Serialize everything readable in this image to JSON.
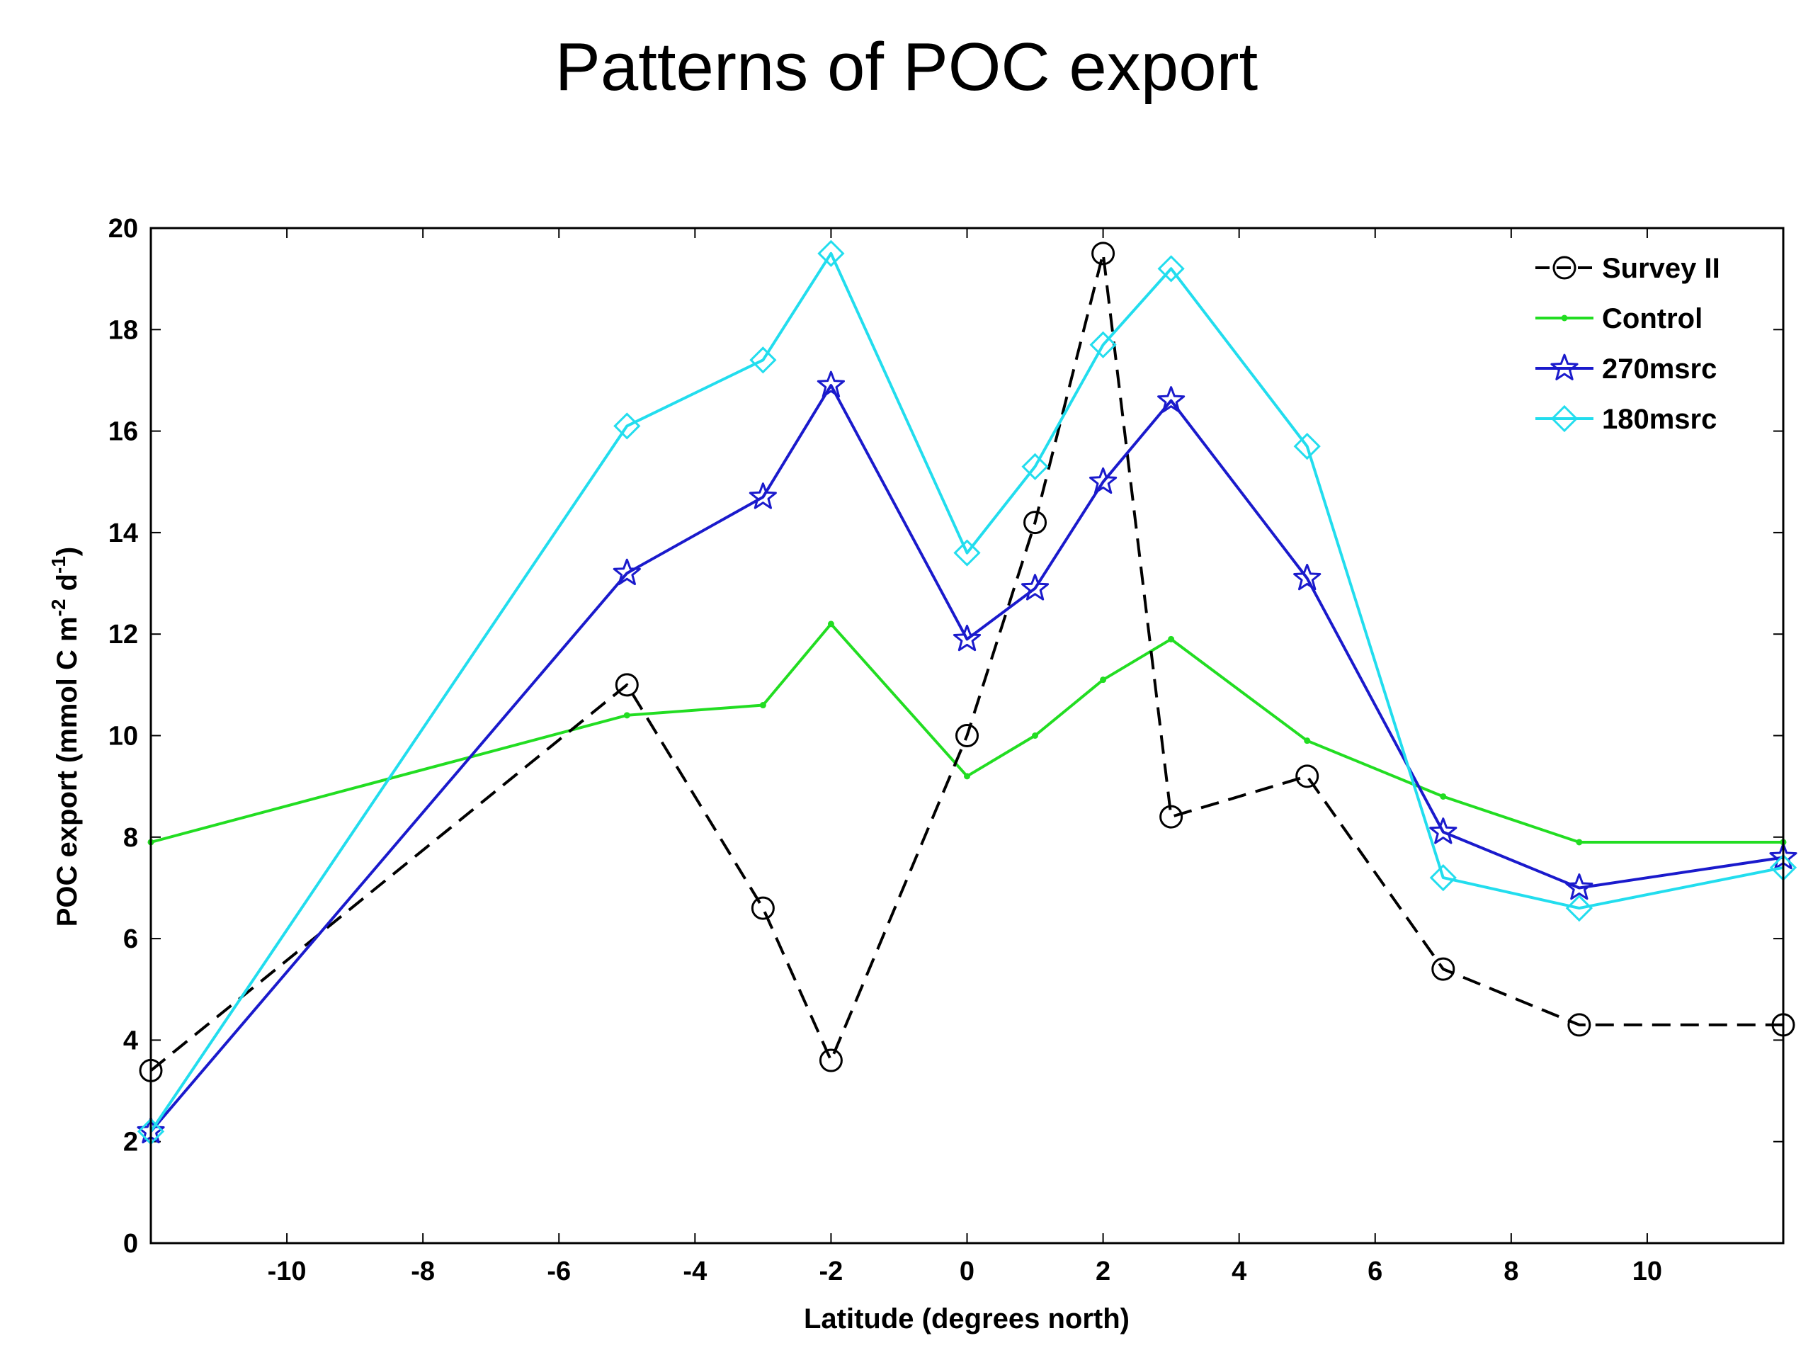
{
  "chart_data": {
    "type": "line",
    "title": "Patterns of POC export",
    "xlabel": "Latitude (degrees north)",
    "ylabel": {
      "main": "POC export (mmol C m",
      "sup1": "-2",
      "mid": " d",
      "sup2": "-1",
      "end": ")"
    },
    "xlim": [
      -12,
      12
    ],
    "ylim": [
      0,
      20
    ],
    "xticks": [
      -10,
      -8,
      -6,
      -4,
      -2,
      0,
      2,
      4,
      6,
      8,
      10
    ],
    "yticks": [
      0,
      2,
      4,
      6,
      8,
      10,
      12,
      14,
      16,
      18,
      20
    ],
    "legend_position": "top-right",
    "series": [
      {
        "name": "Survey II",
        "color": "#000000",
        "line_style": "dashed",
        "marker": "circle",
        "points": [
          [
            -12,
            3.4
          ],
          [
            -5,
            11.0
          ],
          [
            -3,
            6.6
          ],
          [
            -2,
            3.6
          ],
          [
            0,
            10.0
          ],
          [
            1,
            14.2
          ],
          [
            2,
            19.5
          ],
          [
            3,
            8.4
          ],
          [
            5,
            9.2
          ],
          [
            7,
            5.4
          ],
          [
            9,
            4.3
          ],
          [
            12,
            4.3
          ]
        ]
      },
      {
        "name": "Control",
        "color": "#22dd22",
        "line_style": "solid",
        "marker": "dot",
        "points": [
          [
            -12,
            7.9
          ],
          [
            -5,
            10.4
          ],
          [
            -3,
            10.6
          ],
          [
            -2,
            12.2
          ],
          [
            0,
            9.2
          ],
          [
            1,
            10.0
          ],
          [
            2,
            11.1
          ],
          [
            3,
            11.9
          ],
          [
            5,
            9.9
          ],
          [
            7,
            8.8
          ],
          [
            9,
            7.9
          ],
          [
            12,
            7.9
          ]
        ]
      },
      {
        "name": "270msrc",
        "color": "#1a1acc",
        "line_style": "solid",
        "marker": "star",
        "points": [
          [
            -12,
            2.2
          ],
          [
            -5,
            13.2
          ],
          [
            -3,
            14.7
          ],
          [
            -2,
            16.9
          ],
          [
            0,
            11.9
          ],
          [
            1,
            12.9
          ],
          [
            2,
            15.0
          ],
          [
            3,
            16.6
          ],
          [
            5,
            13.1
          ],
          [
            7,
            8.1
          ],
          [
            9,
            7.0
          ],
          [
            12,
            7.6
          ]
        ]
      },
      {
        "name": "180msrc",
        "color": "#22ddee",
        "line_style": "solid",
        "marker": "diamond",
        "points": [
          [
            -12,
            2.2
          ],
          [
            -5,
            16.1
          ],
          [
            -3,
            17.4
          ],
          [
            -2,
            19.5
          ],
          [
            0,
            13.6
          ],
          [
            1,
            15.3
          ],
          [
            2,
            17.7
          ],
          [
            3,
            19.2
          ],
          [
            5,
            15.7
          ],
          [
            7,
            7.2
          ],
          [
            9,
            6.6
          ],
          [
            12,
            7.4
          ]
        ]
      }
    ]
  }
}
